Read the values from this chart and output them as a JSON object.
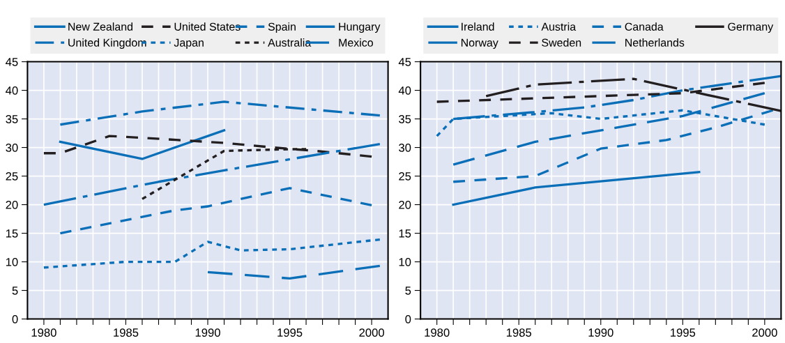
{
  "chart_data": [
    {
      "type": "line",
      "xlim": [
        1979,
        2001
      ],
      "ylim": [
        0,
        45
      ],
      "yticks": [
        0,
        5,
        10,
        15,
        20,
        25,
        30,
        35,
        40,
        45
      ],
      "xticks": [
        1980,
        {
          "value": 1981,
          "label": null
        },
        {
          "value": 1982,
          "label": null
        },
        {
          "value": 1983,
          "label": null
        },
        {
          "value": 1984,
          "label": null
        },
        1985,
        {
          "value": 1986,
          "label": null
        },
        {
          "value": 1987,
          "label": null
        },
        {
          "value": 1988,
          "label": null
        },
        {
          "value": 1989,
          "label": null
        },
        1990,
        {
          "value": 1991,
          "label": null
        },
        {
          "value": 1992,
          "label": null
        },
        {
          "value": 1993,
          "label": null
        },
        {
          "value": 1994,
          "label": null
        },
        1995,
        {
          "value": 1996,
          "label": null
        },
        {
          "value": 1997,
          "label": null
        },
        {
          "value": 1998,
          "label": null
        },
        {
          "value": 1999,
          "label": null
        },
        2000
      ],
      "grid": true,
      "legend": "top",
      "series": [
        {
          "name": "New Zealand",
          "color": "#0b6fb8",
          "line_style": "solid",
          "x": [
            1981,
            1986,
            1991
          ],
          "values": [
            31,
            28,
            33
          ]
        },
        {
          "name": "United States",
          "color": "#231f20",
          "line_style": "dashed",
          "x": [
            1980,
            1981,
            1984,
            1986,
            1991,
            1994,
            1997,
            2000
          ],
          "values": [
            29,
            29,
            32,
            31.7,
            30.8,
            30,
            29.3,
            28.4
          ]
        },
        {
          "name": "Spain",
          "color": "#0b6fb8",
          "line_style": "dashed",
          "x": [
            1981,
            1988,
            1990,
            1995,
            2000
          ],
          "values": [
            15,
            19,
            19.7,
            22.9,
            19.9
          ]
        },
        {
          "name": "Hungary",
          "color": "#0b6fb8",
          "line_style": "longdashdot",
          "x": [
            1980,
            1987,
            1991,
            2000.5
          ],
          "values": [
            20,
            24,
            26,
            30.6
          ]
        },
        {
          "name": "United Kingdom",
          "color": "#0b6fb8",
          "line_style": "dashdot",
          "x": [
            1981,
            1986,
            1991,
            2000.5
          ],
          "values": [
            34,
            36.3,
            38,
            35.6
          ]
        },
        {
          "name": "Japan",
          "color": "#0b6fb8",
          "line_style": "dotted",
          "x": [
            1980,
            1985,
            1988,
            1990,
            1992,
            1995,
            2000.5
          ],
          "values": [
            9,
            10,
            10,
            13.5,
            12,
            12.2,
            13.9
          ]
        },
        {
          "name": "Australia",
          "color": "#231f20",
          "line_style": "dotted",
          "x": [
            1986,
            1991,
            1995,
            1996
          ],
          "values": [
            21,
            29.4,
            29.7,
            29.7
          ]
        },
        {
          "name": "Mexico",
          "color": "#0b6fb8",
          "line_style": "longdash",
          "x": [
            1990,
            1995,
            2000.5
          ],
          "values": [
            8.2,
            7.1,
            9.3
          ]
        }
      ]
    },
    {
      "type": "line",
      "xlim": [
        1979,
        2001
      ],
      "ylim": [
        0,
        45
      ],
      "yticks": [
        0,
        5,
        10,
        15,
        20,
        25,
        30,
        35,
        40,
        45
      ],
      "xticks": [
        1980,
        {
          "value": 1981,
          "label": null
        },
        {
          "value": 1982,
          "label": null
        },
        {
          "value": 1983,
          "label": null
        },
        {
          "value": 1984,
          "label": null
        },
        1985,
        {
          "value": 1986,
          "label": null
        },
        {
          "value": 1987,
          "label": null
        },
        {
          "value": 1988,
          "label": null
        },
        {
          "value": 1989,
          "label": null
        },
        1990,
        {
          "value": 1991,
          "label": null
        },
        {
          "value": 1992,
          "label": null
        },
        {
          "value": 1993,
          "label": null
        },
        {
          "value": 1994,
          "label": null
        },
        1995,
        {
          "value": 1996,
          "label": null
        },
        {
          "value": 1997,
          "label": null
        },
        {
          "value": 1998,
          "label": null
        },
        {
          "value": 1999,
          "label": null
        },
        2000
      ],
      "grid": true,
      "legend": "top",
      "series": [
        {
          "name": "Ireland",
          "color": "#0b6fb8",
          "line_style": "solid",
          "x": [
            1981,
            1986,
            1996
          ],
          "values": [
            20,
            23,
            25.7
          ]
        },
        {
          "name": "Austria",
          "color": "#0b6fb8",
          "line_style": "dotted",
          "x": [
            1980,
            1981,
            1987,
            1990,
            1995,
            2000
          ],
          "values": [
            32,
            35,
            36,
            35,
            36.5,
            34
          ]
        },
        {
          "name": "Canada",
          "color": "#0b6fb8",
          "line_style": "dashed",
          "x": [
            1981,
            1986,
            1990,
            1994,
            1997,
            2000.5
          ],
          "values": [
            24,
            25,
            29.8,
            31.3,
            33.5,
            36.5
          ]
        },
        {
          "name": "Germany",
          "color": "#231f20",
          "line_style": "longdashdot",
          "x": [
            1983,
            1986,
            1992,
            1996,
            2001
          ],
          "values": [
            39,
            41,
            42,
            39.5,
            36.4
          ]
        },
        {
          "name": "Norway",
          "color": "#0b6fb8",
          "line_style": "longdashdot",
          "x": [
            1981,
            1986,
            1989,
            1992,
            1995,
            2001
          ],
          "values": [
            35,
            36.2,
            37,
            38.3,
            40,
            42.5
          ]
        },
        {
          "name": "Sweden",
          "color": "#231f20",
          "line_style": "dashed",
          "x": [
            1980,
            1986,
            1992,
            1995,
            2000
          ],
          "values": [
            38,
            38.6,
            39.2,
            39.5,
            41.3
          ]
        },
        {
          "name": "Netherlands",
          "color": "#0b6fb8",
          "line_style": "longdash",
          "x": [
            1981,
            1986,
            1991,
            1995,
            2000
          ],
          "values": [
            27,
            31,
            33.5,
            35.5,
            39.5
          ]
        }
      ]
    }
  ]
}
